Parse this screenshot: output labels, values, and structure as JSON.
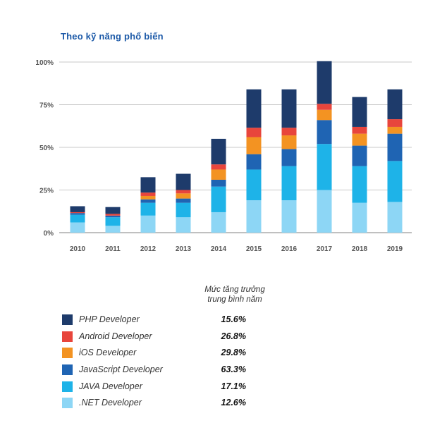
{
  "title": "Theo kỹ năng phổ biến",
  "colors": {
    "php": "#1e3b6b",
    "android": "#e8453c",
    "ios": "#f39322",
    "javascript": "#1f64b3",
    "java": "#1eb3e8",
    "net": "#8dd6f5"
  },
  "growth_header": [
    "Mức tăng trưởng",
    "trung bình năm"
  ],
  "legend": [
    {
      "key": "php",
      "label": "PHP Developer",
      "growth": "15.6%"
    },
    {
      "key": "android",
      "label": "Android Developer",
      "growth": "26.8%"
    },
    {
      "key": "ios",
      "label": "iOS Developer",
      "growth": "29.8%"
    },
    {
      "key": "javascript",
      "label": "JavaScript Developer",
      "growth": "63.3%"
    },
    {
      "key": "java",
      "label": "JAVA Developer",
      "growth": "17.1%"
    },
    {
      "key": "net",
      "label": ".NET Developer",
      "growth": "12.6%"
    }
  ],
  "chart_data": {
    "type": "bar",
    "stacked": true,
    "title": "Theo kỹ năng phổ biến",
    "categories": [
      "2010",
      "2011",
      "2012",
      "2013",
      "2014",
      "2015",
      "2016",
      "2017",
      "2018",
      "2019"
    ],
    "ylim": [
      0,
      100
    ],
    "yticks": [
      0,
      25,
      50,
      75,
      100
    ],
    "ytick_labels": [
      "0%",
      "25%",
      "50%",
      "75%",
      "100%"
    ],
    "grid": true,
    "series": [
      {
        "name": ".NET Developer",
        "key": "net",
        "values": [
          6,
          4,
          10,
          9,
          12,
          19,
          19,
          25,
          17.5,
          18
        ]
      },
      {
        "name": "JAVA Developer",
        "key": "java",
        "values": [
          4.5,
          5,
          7.5,
          8.5,
          15,
          18,
          20,
          27,
          21.5,
          24
        ]
      },
      {
        "name": "JavaScript Developer",
        "key": "javascript",
        "values": [
          1,
          1,
          2,
          2.5,
          4,
          9,
          10,
          14,
          12,
          16
        ]
      },
      {
        "name": "iOS Developer",
        "key": "ios",
        "values": [
          0,
          0,
          2,
          3,
          6,
          10,
          8,
          6,
          7,
          4
        ]
      },
      {
        "name": "Android Developer",
        "key": "android",
        "values": [
          0.5,
          1,
          2,
          2,
          3,
          5.5,
          4.5,
          3.5,
          4,
          4.5
        ]
      },
      {
        "name": "PHP Developer",
        "key": "php",
        "values": [
          3.5,
          4,
          9,
          9.5,
          15,
          22.5,
          22.5,
          25,
          17.5,
          17.5
        ]
      }
    ]
  }
}
